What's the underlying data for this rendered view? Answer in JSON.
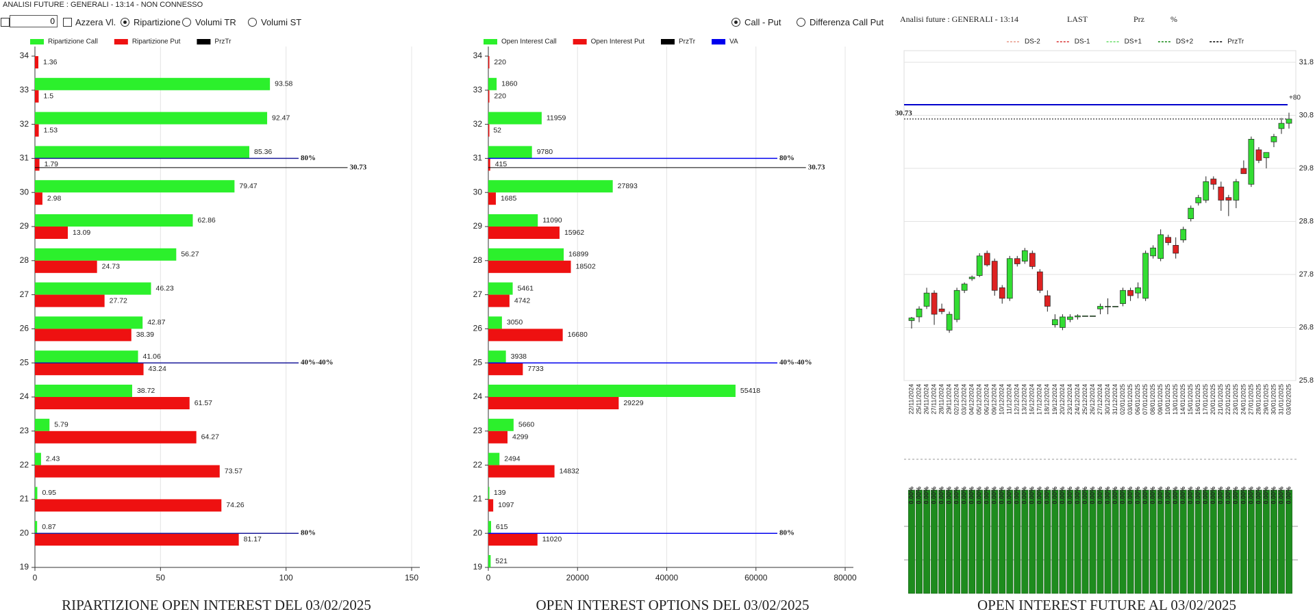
{
  "header": {
    "title": "ANALISI FUTURE : GENERALI - 13:14 - NON CONNESSO"
  },
  "controls": {
    "input": "0",
    "options": [
      {
        "label": "Azzera Vl.",
        "kind": "checkbox",
        "checked": false
      },
      {
        "label": "Ripartizione",
        "kind": "radio",
        "checked": true
      },
      {
        "label": "Volumi TR",
        "kind": "radio",
        "checked": false
      },
      {
        "label": "Volumi ST",
        "kind": "radio",
        "checked": false
      },
      {
        "label": "Call - Put",
        "kind": "radio",
        "checked": true
      },
      {
        "label": "Differenza Call Put",
        "kind": "radio",
        "checked": false
      }
    ]
  },
  "chart_data": [
    {
      "type": "hbar",
      "title": "RIPARTIZIONE OPEN INTEREST DEL 03/02/2025",
      "y": [
        34,
        33,
        32,
        31,
        30,
        29,
        28,
        27,
        26,
        25,
        24,
        23,
        22,
        21,
        20,
        19
      ],
      "series": [
        {
          "name": "Ripartizione Call",
          "color": "#2cf02c",
          "values": [
            null,
            93.58,
            92.47,
            85.36,
            79.47,
            62.86,
            56.27,
            46.23,
            42.87,
            41.06,
            38.72,
            5.79,
            2.43,
            0.95,
            0.87,
            null
          ]
        },
        {
          "name": "Ripartizione Put",
          "color": "#ee1111",
          "values": [
            1.36,
            1.5,
            1.53,
            1.79,
            2.98,
            13.09,
            24.73,
            27.72,
            38.39,
            43.24,
            61.57,
            64.27,
            73.57,
            74.26,
            81.17,
            null
          ]
        }
      ],
      "lines": [
        {
          "name": "PrzTr",
          "color": "#000000"
        }
      ],
      "annotations": [
        {
          "at": 31,
          "label": "80%"
        },
        {
          "at": 25,
          "label": "40%-40%"
        },
        {
          "at": 20,
          "label": "80%"
        }
      ],
      "price": 30.73,
      "xlim": [
        0,
        150
      ],
      "xticks": [
        0,
        50,
        100,
        150
      ],
      "ylim": [
        19,
        34
      ],
      "yticks": [
        19,
        20,
        21,
        22,
        23,
        24,
        25,
        26,
        27,
        28,
        29,
        30,
        31,
        32,
        33,
        34
      ],
      "grid": true
    },
    {
      "type": "hbar",
      "title": "OPEN INTEREST OPTIONS DEL 03/02/2025",
      "y": [
        34,
        33,
        32,
        31,
        30,
        29,
        28,
        27,
        26,
        25,
        24,
        23,
        22,
        21,
        20,
        19
      ],
      "series": [
        {
          "name": "Open Interest Call",
          "color": "#2cf02c",
          "values": [
            null,
            1860,
            11959,
            9780,
            27893,
            11090,
            16899,
            5461,
            3050,
            3938,
            55418,
            5660,
            2494,
            139,
            615,
            521
          ]
        },
        {
          "name": "Open Interest Put",
          "color": "#ee1111",
          "values": [
            220,
            220,
            52,
            415,
            1685,
            15962,
            18502,
            4742,
            16680,
            7733,
            29229,
            4299,
            14832,
            1097,
            11020,
            null
          ]
        }
      ],
      "lines": [
        {
          "name": "PrzTr",
          "color": "#000000"
        },
        {
          "name": "VA",
          "color": "#0000ee"
        }
      ],
      "annotations": [
        {
          "at": 31,
          "label": "80%"
        },
        {
          "at": 25,
          "label": "40%-40%"
        },
        {
          "at": 20,
          "label": "80%"
        }
      ],
      "price": 30.73,
      "xlim": [
        0,
        80000
      ],
      "xticks": [
        0,
        20000,
        40000,
        60000,
        80000
      ],
      "ylim": [
        19,
        34
      ],
      "yticks": [
        19,
        20,
        21,
        22,
        23,
        24,
        25,
        26,
        27,
        28,
        29,
        30,
        31,
        32,
        33,
        34
      ],
      "grid": true
    },
    {
      "type": "candlestick",
      "title": "OPEN INTEREST FUTURE AL 03/02/2025",
      "header": "Analisi future : GENERALI - 13:14",
      "columns": [
        "LAST",
        "Prz",
        "%"
      ],
      "lines": [
        {
          "name": "DS-2",
          "color": "#e89a8a",
          "dash": false
        },
        {
          "name": "DS-1",
          "color": "#d93030",
          "dash": false
        },
        {
          "name": "DS+1",
          "color": "#66dd66",
          "dash": false
        },
        {
          "name": "DS+2",
          "color": "#118811",
          "dash": false
        },
        {
          "name": "PrzTr",
          "color": "#000000",
          "dash": true
        }
      ],
      "x": [
        "22/11/2024",
        "25/11/2024",
        "26/11/2024",
        "27/11/2024",
        "28/11/2024",
        "29/11/2024",
        "02/12/2024",
        "03/12/2024",
        "04/12/2024",
        "05/12/2024",
        "06/12/2024",
        "09/12/2024",
        "10/12/2024",
        "11/12/2024",
        "12/12/2024",
        "13/12/2024",
        "16/12/2024",
        "17/12/2024",
        "18/12/2024",
        "19/12/2024",
        "20/12/2024",
        "23/12/2024",
        "24/12/2024",
        "25/12/2024",
        "26/12/2024",
        "27/12/2024",
        "30/12/2024",
        "31/12/2024",
        "02/01/2025",
        "03/01/2025",
        "06/01/2025",
        "07/01/2025",
        "08/01/2025",
        "09/01/2025",
        "10/01/2025",
        "13/01/2025",
        "14/01/2025",
        "15/01/2025",
        "16/01/2025",
        "17/01/2025",
        "20/01/2025",
        "21/01/2025",
        "22/01/2025",
        "23/01/2025",
        "24/01/2025",
        "27/01/2025",
        "28/01/2025",
        "29/01/2025",
        "30/01/2025",
        "31/01/2025",
        "03/02/2025"
      ],
      "open": [
        26.93,
        27.0,
        27.2,
        27.45,
        27.15,
        26.75,
        26.95,
        27.5,
        27.72,
        27.78,
        28.2,
        28.05,
        27.55,
        27.35,
        28.1,
        28.05,
        28.2,
        27.85,
        27.4,
        26.85,
        26.8,
        26.95,
        27.0,
        27.02,
        27.02,
        27.15,
        27.2,
        27.2,
        27.25,
        27.5,
        27.45,
        27.35,
        28.15,
        28.1,
        28.5,
        28.35,
        28.45,
        28.85,
        29.15,
        29.2,
        29.6,
        29.45,
        29.25,
        29.2,
        29.8,
        29.5,
        30.15,
        30.0,
        30.3,
        30.55,
        30.65
      ],
      "high": [
        27.0,
        27.2,
        27.55,
        27.5,
        27.25,
        27.1,
        27.55,
        27.65,
        27.78,
        28.2,
        28.25,
        28.1,
        27.6,
        28.15,
        28.15,
        28.3,
        28.25,
        27.9,
        27.5,
        27.05,
        27.05,
        27.05,
        27.05,
        27.02,
        27.02,
        27.25,
        27.35,
        27.2,
        27.55,
        27.55,
        27.65,
        28.25,
        28.35,
        28.65,
        28.55,
        28.5,
        28.7,
        29.1,
        29.3,
        29.65,
        29.65,
        29.55,
        29.3,
        29.6,
        29.95,
        30.4,
        30.2,
        30.1,
        30.45,
        30.75,
        30.85
      ],
      "low": [
        26.78,
        26.9,
        27.15,
        26.85,
        27.05,
        26.7,
        26.9,
        27.45,
        27.68,
        27.75,
        27.95,
        27.4,
        27.25,
        27.3,
        27.95,
        28.0,
        27.9,
        27.45,
        27.1,
        26.8,
        26.75,
        26.9,
        26.95,
        27.02,
        27.02,
        27.05,
        27.05,
        27.2,
        27.2,
        27.3,
        27.35,
        27.3,
        28.1,
        28.05,
        28.35,
        28.1,
        28.4,
        28.8,
        29.1,
        29.15,
        29.4,
        29.0,
        28.9,
        29.05,
        29.7,
        29.45,
        29.9,
        29.8,
        30.2,
        30.45,
        30.55
      ],
      "close": [
        26.98,
        27.15,
        27.45,
        27.05,
        27.1,
        27.05,
        27.5,
        27.62,
        27.75,
        28.15,
        27.98,
        27.5,
        27.35,
        28.1,
        28.0,
        28.25,
        27.95,
        27.5,
        27.2,
        26.95,
        27.0,
        27.0,
        27.02,
        27.02,
        27.02,
        27.2,
        27.2,
        27.2,
        27.5,
        27.4,
        27.55,
        28.2,
        28.3,
        28.55,
        28.4,
        28.2,
        28.65,
        29.05,
        29.25,
        29.55,
        29.5,
        29.2,
        29.2,
        29.55,
        29.7,
        30.35,
        29.95,
        30.1,
        30.4,
        30.65,
        30.73
      ],
      "up_color": "#33dd33",
      "down_color": "#dd2222",
      "levels": [
        {
          "value": 31.0,
          "label": "+80",
          "color": "#0000cc"
        }
      ],
      "price": 30.73,
      "ylim": [
        25.8,
        31.8
      ],
      "yticks": [
        25.8,
        26.8,
        27.8,
        28.8,
        29.8,
        30.8,
        31.8
      ],
      "grid": true,
      "volume": {
        "color": "#1e8c1e",
        "values": [
          0,
          0,
          0,
          0,
          0,
          0,
          0,
          0,
          0,
          0,
          0,
          0,
          0,
          0,
          0,
          0,
          0,
          0,
          0,
          0,
          0,
          0,
          0,
          0,
          0,
          0,
          0,
          0,
          0,
          0,
          0,
          0,
          0,
          0,
          0,
          0,
          0,
          0,
          0,
          0,
          0,
          0,
          0,
          0,
          0,
          0,
          0,
          0,
          0,
          0,
          0
        ],
        "value_labels": [
          "0.00%",
          "0.00%",
          "0.00%",
          "0.00%",
          "0.00%",
          "0.00%",
          "0.00%",
          "0.00%",
          "0.00%",
          "0.00%",
          "0.00%",
          "0.00%",
          "0.00%",
          "0.00%",
          "0.00%",
          "0.00%",
          "0.00%",
          "0.00%",
          "0.00%",
          "0.00%",
          "0.00%",
          "0.00%",
          "0.00%",
          "0.00%",
          "0.00%",
          "0.00%",
          "0.00%",
          "0.00%",
          "0.00%",
          "0.00%",
          "0.00%",
          "0.00%",
          "0.00%",
          "0.00%",
          "0.00%",
          "0.00%",
          "0.00%",
          "0.00%",
          "0.00%",
          "0.00%",
          "0.00%",
          "0.00%",
          "0.00%",
          "0.00%",
          "0.00%",
          "0.00%",
          "0.00%",
          "0.00%",
          "0.00%",
          "0.00%",
          "0.00%"
        ]
      }
    }
  ]
}
